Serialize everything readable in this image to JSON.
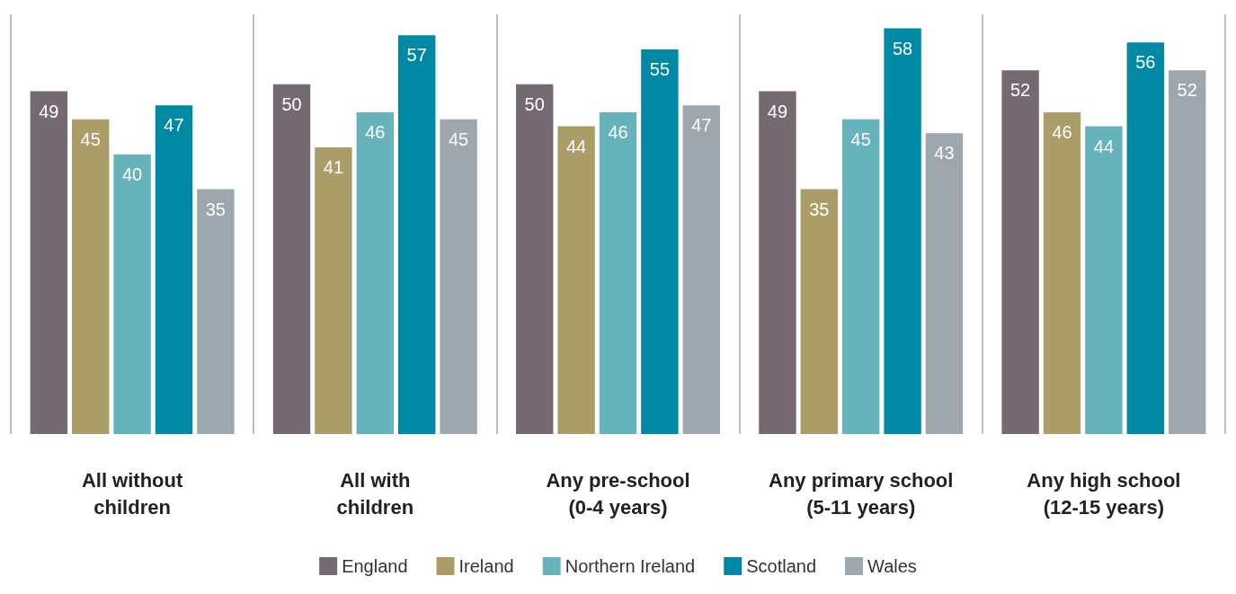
{
  "chart_data": {
    "type": "bar",
    "categories": [
      "All without\nchildren",
      "All with\nchildren",
      "Any pre-school\n(0-4 years)",
      "Any primary school\n(5-11 years)",
      "Any high school\n(12-15 years)"
    ],
    "series": [
      {
        "name": "England",
        "color": "#766a72",
        "values": [
          49,
          50,
          50,
          49,
          52
        ]
      },
      {
        "name": "Ireland",
        "color": "#ab9d68",
        "values": [
          45,
          41,
          44,
          35,
          46
        ]
      },
      {
        "name": "Northern Ireland",
        "color": "#66b3bc",
        "values": [
          40,
          46,
          46,
          45,
          44
        ]
      },
      {
        "name": "Scotland",
        "color": "#0089a4",
        "values": [
          47,
          57,
          55,
          58,
          56
        ]
      },
      {
        "name": "Wales",
        "color": "#9ea7ae",
        "values": [
          35,
          45,
          47,
          43,
          52
        ]
      }
    ],
    "data_labels": true,
    "grid": "x",
    "legend": "bottom"
  }
}
